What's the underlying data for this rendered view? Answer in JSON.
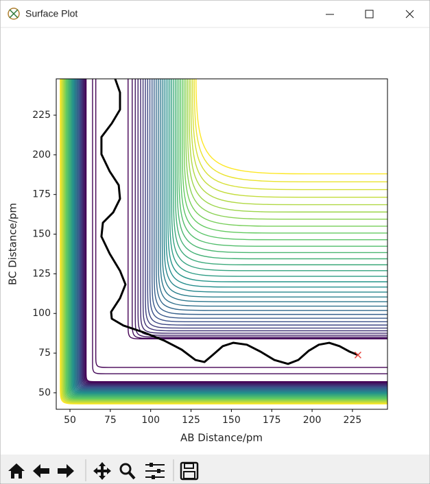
{
  "window": {
    "title": "Surface Plot"
  },
  "chart_data": {
    "type": "contour",
    "xlabel": "AB Distance/pm",
    "ylabel": "BC Distance/pm",
    "xlim": [
      41.5,
      246.7
    ],
    "ylim": [
      39.6,
      247.9
    ],
    "xticks": [
      50,
      75,
      100,
      125,
      150,
      175,
      200,
      225
    ],
    "yticks": [
      50,
      75,
      100,
      125,
      150,
      175,
      200,
      225
    ],
    "series": [
      {
        "color": "#000000",
        "x": [
          78.0,
          81.0,
          81.0,
          75.9,
          69.5,
          69.5,
          74.6,
          80.2,
          81.0,
          76.8,
          70.4,
          69.5,
          74.6,
          81.0,
          84.4,
          81.0,
          75.5,
          75.9,
          83.1,
          95.9,
          108.6,
          119.2,
          127.7,
          133.3,
          138.4,
          144.7,
          151.1,
          159.6,
          168.1,
          176.6,
          185.1,
          191.5,
          197.8,
          204.2,
          210.6,
          217.0,
          223.3,
          228.4
        ],
        "y": [
          247.9,
          239.3,
          228.5,
          219.8,
          211.2,
          200.4,
          189.6,
          180.9,
          172.3,
          163.7,
          157.2,
          148.5,
          137.7,
          126.9,
          118.3,
          109.6,
          101.0,
          96.7,
          92.4,
          88.0,
          82.8,
          77.2,
          70.7,
          69.4,
          73.8,
          79.4,
          81.5,
          80.3,
          75.9,
          70.7,
          68.2,
          70.7,
          76.4,
          80.3,
          81.5,
          79.4,
          75.9,
          73.8
        ]
      }
    ],
    "marker": {
      "x": 228.4,
      "y": 73.8,
      "color": "#e8413a"
    }
  }
}
